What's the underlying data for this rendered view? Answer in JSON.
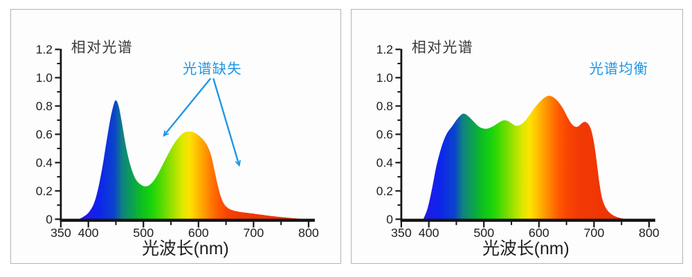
{
  "page": {
    "background": "#ffffff",
    "panel_border": "#b3b3b3",
    "panel_background": "#fdfdfd"
  },
  "accent_blue": "#1e96e6",
  "axis": {
    "line_color": "#151515",
    "tick_label_color": "#1f1f1f",
    "title_color": "#3a3a3a",
    "xlim": [
      350,
      800
    ],
    "ylim": [
      0,
      1.2
    ],
    "x_major_ticks": [
      350,
      400,
      500,
      600,
      700,
      800
    ],
    "x_major_tick_labels": [
      "350",
      "400",
      "500",
      "600",
      "700",
      "800"
    ],
    "x_minor_ticks": [
      450,
      550,
      650,
      750
    ],
    "y_major_ticks": [
      0,
      0.2,
      0.4,
      0.6,
      0.8,
      1.0,
      1.2
    ],
    "y_major_tick_labels": [
      "0",
      "0.2",
      "0.4",
      "0.6",
      "0.8",
      "1.0",
      "1.2"
    ],
    "y_minor_ticks": [
      0.1,
      0.3,
      0.5,
      0.7,
      0.9,
      1.1
    ],
    "grid": "off",
    "legend": "none"
  },
  "spectrum_gradient": [
    {
      "nm": 383,
      "color": "#2a14e4"
    },
    {
      "nm": 420,
      "color": "#0d24ec"
    },
    {
      "nm": 447,
      "color": "#0b43cc"
    },
    {
      "nm": 462,
      "color": "#0e8380"
    },
    {
      "nm": 480,
      "color": "#0ba24e"
    },
    {
      "nm": 497,
      "color": "#0cc020"
    },
    {
      "nm": 517,
      "color": "#1dd609"
    },
    {
      "nm": 540,
      "color": "#6edc00"
    },
    {
      "nm": 557,
      "color": "#abe300"
    },
    {
      "nm": 571,
      "color": "#dfe800"
    },
    {
      "nm": 584,
      "color": "#fee200"
    },
    {
      "nm": 596,
      "color": "#ffc300"
    },
    {
      "nm": 610,
      "color": "#ff9d00"
    },
    {
      "nm": 623,
      "color": "#ff7900"
    },
    {
      "nm": 637,
      "color": "#ff5800"
    },
    {
      "nm": 652,
      "color": "#f94502"
    },
    {
      "nm": 672,
      "color": "#f23a04"
    },
    {
      "nm": 740,
      "color": "#ee3305"
    }
  ],
  "chart_data": [
    {
      "type": "area",
      "title": "相对光谱",
      "xlabel": "光波长(nm)",
      "ylabel": "",
      "xlim": [
        350,
        800
      ],
      "ylim": [
        0,
        1.2
      ],
      "annotation": {
        "text": "光谱缺失",
        "color": "#1e96e6",
        "anchor_nm": 625,
        "anchor_v": 1.03,
        "arrows": [
          {
            "from_nm": 622,
            "from_v": 0.995,
            "to_nm": 537,
            "to_v": 0.59
          },
          {
            "from_nm": 627,
            "from_v": 0.995,
            "to_nm": 674,
            "to_v": 0.38
          }
        ]
      },
      "points": [
        [
          383,
          0
        ],
        [
          392,
          0.02
        ],
        [
          401,
          0.05
        ],
        [
          410,
          0.11
        ],
        [
          418,
          0.22
        ],
        [
          426,
          0.38
        ],
        [
          433,
          0.55
        ],
        [
          440,
          0.71
        ],
        [
          446,
          0.81
        ],
        [
          450,
          0.84
        ],
        [
          455,
          0.8
        ],
        [
          461,
          0.68
        ],
        [
          468,
          0.52
        ],
        [
          476,
          0.385
        ],
        [
          485,
          0.29
        ],
        [
          495,
          0.245
        ],
        [
          505,
          0.232
        ],
        [
          515,
          0.255
        ],
        [
          525,
          0.31
        ],
        [
          535,
          0.385
        ],
        [
          545,
          0.46
        ],
        [
          555,
          0.53
        ],
        [
          565,
          0.582
        ],
        [
          574,
          0.612
        ],
        [
          583,
          0.62
        ],
        [
          592,
          0.612
        ],
        [
          601,
          0.59
        ],
        [
          609,
          0.56
        ],
        [
          616,
          0.52
        ],
        [
          623,
          0.45
        ],
        [
          629,
          0.345
        ],
        [
          635,
          0.24
        ],
        [
          641,
          0.155
        ],
        [
          647,
          0.105
        ],
        [
          654,
          0.078
        ],
        [
          663,
          0.062
        ],
        [
          675,
          0.052
        ],
        [
          690,
          0.044
        ],
        [
          710,
          0.034
        ],
        [
          730,
          0.024
        ],
        [
          750,
          0.015
        ],
        [
          770,
          0.008
        ],
        [
          788,
          0.002
        ],
        [
          795,
          0
        ]
      ]
    },
    {
      "type": "area",
      "title": "相对光谱",
      "xlabel": "光波长(nm)",
      "ylabel": "",
      "xlim": [
        350,
        800
      ],
      "ylim": [
        0,
        1.2
      ],
      "annotation": {
        "text": "光谱均衡",
        "color": "#1e96e6",
        "anchor_nm": 745,
        "anchor_v": 1.03,
        "arrows": []
      },
      "points": [
        [
          390,
          0
        ],
        [
          398,
          0.08
        ],
        [
          406,
          0.22
        ],
        [
          414,
          0.38
        ],
        [
          423,
          0.51
        ],
        [
          432,
          0.6
        ],
        [
          442,
          0.655
        ],
        [
          452,
          0.71
        ],
        [
          462,
          0.745
        ],
        [
          471,
          0.73
        ],
        [
          480,
          0.695
        ],
        [
          489,
          0.66
        ],
        [
          498,
          0.642
        ],
        [
          506,
          0.64
        ],
        [
          516,
          0.655
        ],
        [
          526,
          0.68
        ],
        [
          535,
          0.698
        ],
        [
          543,
          0.695
        ],
        [
          551,
          0.675
        ],
        [
          559,
          0.66
        ],
        [
          568,
          0.672
        ],
        [
          577,
          0.705
        ],
        [
          587,
          0.76
        ],
        [
          597,
          0.81
        ],
        [
          607,
          0.85
        ],
        [
          617,
          0.872
        ],
        [
          626,
          0.862
        ],
        [
          635,
          0.83
        ],
        [
          644,
          0.78
        ],
        [
          652,
          0.72
        ],
        [
          659,
          0.675
        ],
        [
          665,
          0.655
        ],
        [
          671,
          0.655
        ],
        [
          677,
          0.675
        ],
        [
          683,
          0.688
        ],
        [
          689,
          0.675
        ],
        [
          694,
          0.64
        ],
        [
          698,
          0.58
        ],
        [
          702,
          0.49
        ],
        [
          706,
          0.37
        ],
        [
          710,
          0.25
        ],
        [
          714,
          0.16
        ],
        [
          719,
          0.1
        ],
        [
          725,
          0.06
        ],
        [
          733,
          0.032
        ],
        [
          742,
          0.015
        ],
        [
          752,
          0.005
        ],
        [
          762,
          0
        ]
      ]
    }
  ]
}
